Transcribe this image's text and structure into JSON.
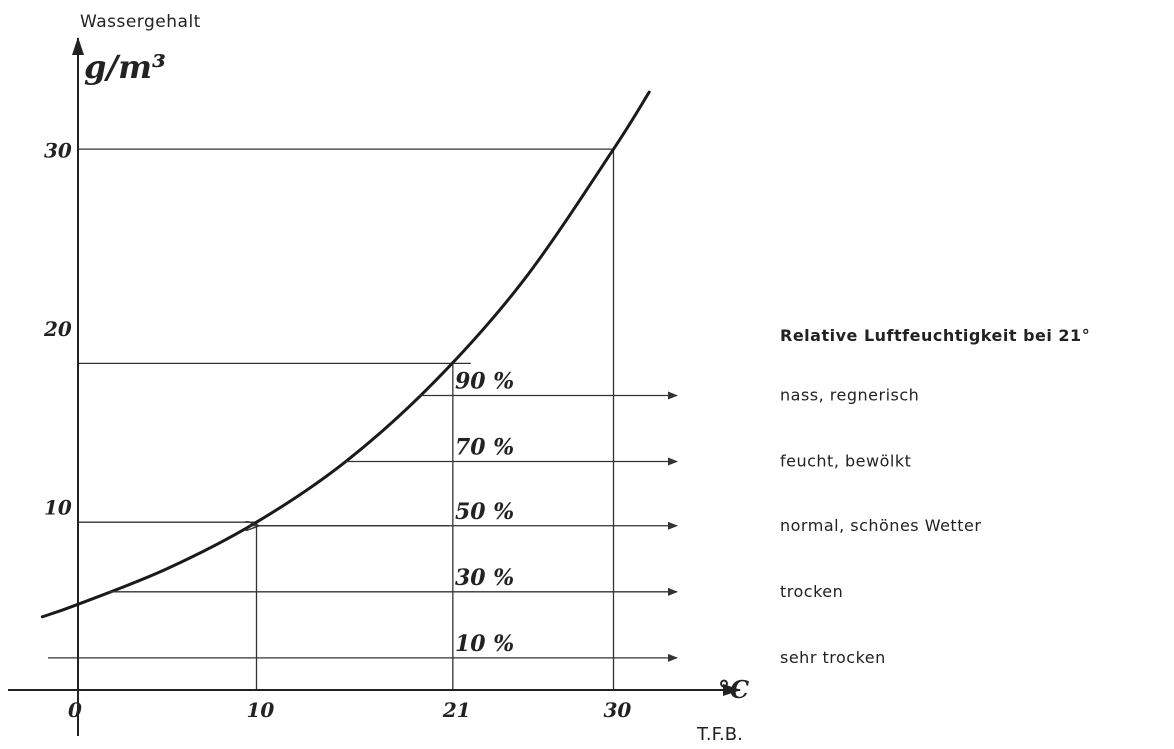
{
  "chart_data": {
    "type": "line",
    "ylabel": "Wassergehalt",
    "yunit": "g/m³",
    "xunit": "°C",
    "source": "T.F.B.",
    "x_ticks": [
      "0",
      "10",
      "21",
      "30"
    ],
    "y_ticks": [
      "10",
      "20",
      "30"
    ],
    "xlim": [
      -4,
      38
    ],
    "ylim": [
      -1,
      36
    ],
    "saturation_curve": {
      "x": [
        -2,
        0,
        5,
        10,
        15,
        20,
        25,
        30,
        32
      ],
      "y": [
        4.1,
        4.8,
        6.8,
        9.4,
        12.8,
        17.3,
        23.0,
        30.3,
        33.5
      ]
    },
    "guide_lines": [
      {
        "x": 10,
        "y": 9.4
      },
      {
        "x": 21,
        "y": 18.3
      },
      {
        "x": 30,
        "y": 30.3
      }
    ],
    "humidity_levels": [
      {
        "percent": 90,
        "label": "90 %",
        "y": 16.5,
        "description": "nass, regnerisch"
      },
      {
        "percent": 70,
        "label": "70 %",
        "y": 12.8,
        "description": "feucht, bewölkt"
      },
      {
        "percent": 50,
        "label": "50 %",
        "y": 9.2,
        "description": "normal, schönes Wetter"
      },
      {
        "percent": 30,
        "label": "30 %",
        "y": 5.5,
        "description": "trocken"
      },
      {
        "percent": 10,
        "label": "10 %",
        "y": 1.8,
        "description": "sehr trocken"
      }
    ],
    "legend_title": "Relative Luftfeuchtigkeit bei 21°"
  }
}
